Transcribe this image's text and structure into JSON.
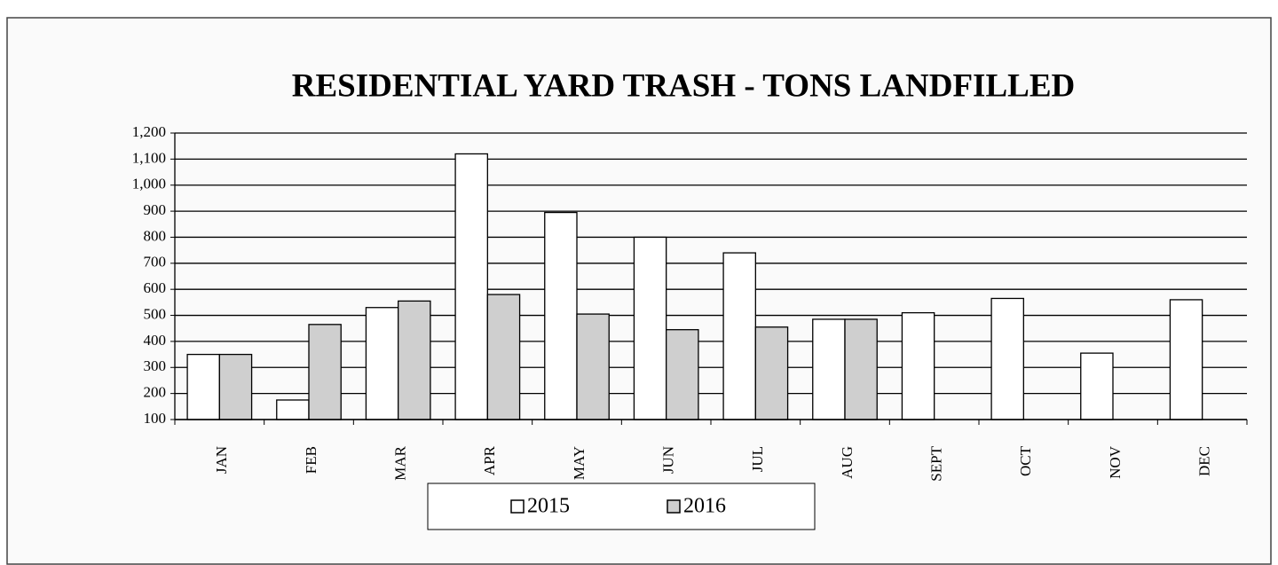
{
  "chart_data": {
    "type": "bar",
    "title": "RESIDENTIAL YARD TRASH -  TONS LANDFILLED",
    "categories": [
      "JAN",
      "FEB",
      "MAR",
      "APR",
      "MAY",
      "JUN",
      "JUL",
      "AUG",
      "SEPT",
      "OCT",
      "NOV",
      "DEC"
    ],
    "series": [
      {
        "name": "2015",
        "color": "#ffffff",
        "values": [
          350,
          175,
          530,
          1120,
          895,
          800,
          740,
          485,
          510,
          565,
          355,
          560
        ]
      },
      {
        "name": "2016",
        "color": "#cfcfcf",
        "values": [
          350,
          465,
          555,
          580,
          505,
          445,
          455,
          485,
          null,
          null,
          null,
          null
        ]
      }
    ],
    "ylim": [
      100,
      1200
    ],
    "yticks": [
      100,
      200,
      300,
      400,
      500,
      600,
      700,
      800,
      900,
      {
        "value": 1000,
        "label": "1,000"
      },
      {
        "value": 1100,
        "label": "1,100"
      },
      {
        "value": 1200,
        "label": "1,200"
      }
    ],
    "grid": true,
    "legend": "bottom"
  }
}
